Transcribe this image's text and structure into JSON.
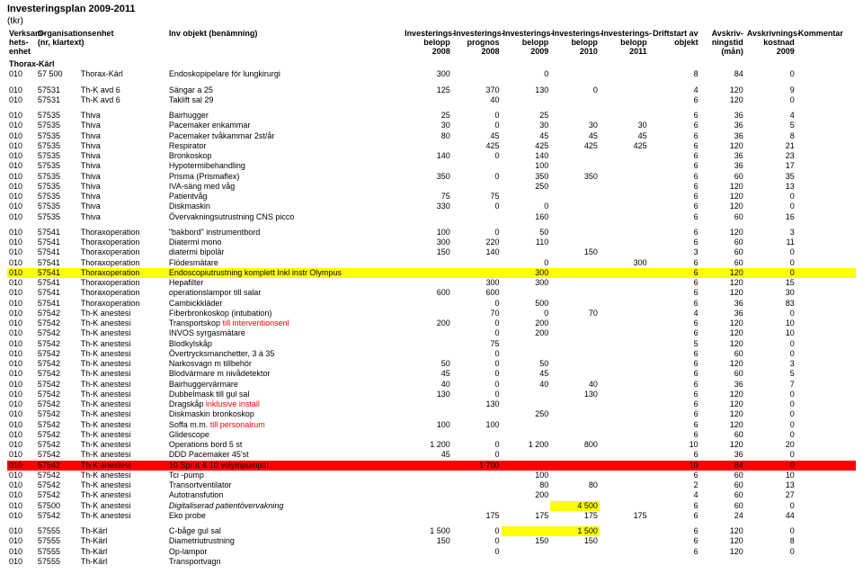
{
  "title": "Investeringsplan 2009-2011",
  "subtitle": "(tkr)",
  "headers": {
    "c0a": "Verksam-",
    "c0b": "hets-",
    "c0c": "enhet",
    "c1a": "Organisationsenhet",
    "c1b": "(nr, klartext)",
    "c2": "Inv objekt (benämning)",
    "c3a": "Investerings-",
    "c3b": "belopp",
    "c3c": "2008",
    "c4a": "Investerings-",
    "c4b": "prognos",
    "c4c": "2008",
    "c5a": "Investerings-",
    "c5b": "belopp",
    "c5c": "2009",
    "c6a": "Investerings-",
    "c6b": "belopp",
    "c6c": "2010",
    "c7a": "Investerings-",
    "c7b": "belopp",
    "c7c": "2011",
    "c8a": "Driftstart av",
    "c8b": "objekt",
    "c9a": "Avskriv-",
    "c9b": "ningstid",
    "c9c": "(mån)",
    "c10a": "Avskrivnings-",
    "c10b": "kostnad 2009",
    "c11": "Kommentar"
  },
  "sectionName": "Thorax-Kärl",
  "colors": {
    "highlightYellow": "#ffff00",
    "highlightRed": "#ff0000",
    "redText": "#ff0000"
  },
  "rows": [
    {
      "ve": "010",
      "nr": "57 500",
      "org": "Thorax-Kärl",
      "obj": "Endoskopipelare för lungkirurgi",
      "v": [
        "300",
        "",
        "0",
        "",
        "",
        "8",
        "84",
        "0"
      ]
    },
    {
      "spacer": true
    },
    {
      "ve": "010",
      "nr": "57531",
      "org": "Th-K avd 6",
      "obj": "Sängar a 25",
      "v": [
        "125",
        "370",
        "130",
        "0",
        "",
        "4",
        "120",
        "9"
      ]
    },
    {
      "ve": "010",
      "nr": "57531",
      "org": "Th-K avd 6",
      "obj": "Taklift sal 29",
      "v": [
        "",
        "40",
        "",
        "",
        "",
        "6",
        "120",
        "0"
      ]
    },
    {
      "spacer": true
    },
    {
      "ve": "010",
      "nr": "57535",
      "org": "Thiva",
      "obj": "Bairhugger",
      "v": [
        "25",
        "0",
        "25",
        "",
        "",
        "6",
        "36",
        "4"
      ]
    },
    {
      "ve": "010",
      "nr": "57535",
      "org": "Thiva",
      "obj": "Pacemaker enkammar",
      "v": [
        "30",
        "0",
        "30",
        "30",
        "30",
        "6",
        "36",
        "5"
      ]
    },
    {
      "ve": "010",
      "nr": "57535",
      "org": "Thiva",
      "obj": "Pacemaker tvåkammar 2st/år",
      "v": [
        "80",
        "45",
        "45",
        "45",
        "45",
        "6",
        "36",
        "8"
      ]
    },
    {
      "ve": "010",
      "nr": "57535",
      "org": "Thiva",
      "obj": "Respirator",
      "v": [
        "",
        "425",
        "425",
        "425",
        "425",
        "6",
        "120",
        "21"
      ]
    },
    {
      "ve": "010",
      "nr": "57535",
      "org": "Thiva",
      "obj": "Bronkoskop",
      "v": [
        "140",
        "0",
        "140",
        "",
        "",
        "6",
        "36",
        "23"
      ]
    },
    {
      "ve": "010",
      "nr": "57535",
      "org": "Thiva",
      "obj": "Hypotermibehandling",
      "v": [
        "",
        "",
        "100",
        "",
        "",
        "6",
        "36",
        "17"
      ]
    },
    {
      "ve": "010",
      "nr": "57535",
      "org": "Thiva",
      "obj": "Prisma (Prismaflex)",
      "v": [
        "350",
        "0",
        "350",
        "350",
        "",
        "6",
        "60",
        "35"
      ]
    },
    {
      "ve": "010",
      "nr": "57535",
      "org": "Thiva",
      "obj": "IVA-säng med våg",
      "v": [
        "",
        "",
        "250",
        "",
        "",
        "6",
        "120",
        "13"
      ]
    },
    {
      "ve": "010",
      "nr": "57535",
      "org": "Thiva",
      "obj": "Patientvåg",
      "v": [
        "75",
        "75",
        "",
        "",
        "",
        "6",
        "120",
        "0"
      ]
    },
    {
      "ve": "010",
      "nr": "57535",
      "org": "Thiva",
      "obj": "Diskmaskin",
      "v": [
        "330",
        "0",
        "0",
        "",
        "",
        "6",
        "120",
        "0"
      ]
    },
    {
      "ve": "010",
      "nr": "57535",
      "org": "Thiva",
      "obj": "Övervakningsutrustning CNS picco",
      "v": [
        "",
        "",
        "160",
        "",
        "",
        "6",
        "60",
        "16"
      ]
    },
    {
      "spacer": true
    },
    {
      "ve": "010",
      "nr": "57541",
      "org": "Thoraxoperation",
      "obj": "\"bakbord\" instrumentbord",
      "v": [
        "100",
        "0",
        "50",
        "",
        "",
        "6",
        "120",
        "3"
      ]
    },
    {
      "ve": "010",
      "nr": "57541",
      "org": "Thoraxoperation",
      "obj": "Diatermi mono",
      "v": [
        "300",
        "220",
        "110",
        "",
        "",
        "6",
        "60",
        "11"
      ]
    },
    {
      "ve": "010",
      "nr": "57541",
      "org": "Thoraxoperation",
      "obj": "diatermi bipolär",
      "v": [
        "150",
        "140",
        "",
        "150",
        "",
        "3",
        "60",
        "0"
      ]
    },
    {
      "ve": "010",
      "nr": "57541",
      "org": "Thoraxoperation",
      "obj": "Flödesmätare",
      "v": [
        "",
        "",
        "0",
        "",
        "300",
        "6",
        "60",
        "0"
      ]
    },
    {
      "ve": "010",
      "nr": "57541",
      "org": "Thoraxoperation",
      "obj": "Endoscopiutrustning komplett Inkl instr Olympus",
      "v": [
        "",
        "",
        "300",
        "",
        "",
        "6",
        "120",
        "0"
      ],
      "rowClass": "hl-yellow"
    },
    {
      "ve": "010",
      "nr": "57541",
      "org": "Thoraxoperation",
      "obj": "Hepafilter",
      "v": [
        "",
        "300",
        "300",
        "",
        "",
        "6",
        "120",
        "15"
      ]
    },
    {
      "ve": "010",
      "nr": "57541",
      "org": "Thoraxoperation",
      "obj": "operationslampor till salar",
      "v": [
        "600",
        "600",
        "",
        "",
        "",
        "6",
        "120",
        "30"
      ]
    },
    {
      "ve": "010",
      "nr": "57541",
      "org": "Thoraxoperation",
      "obj": "Cambickkläder",
      "v": [
        "",
        "0",
        "500",
        "",
        "",
        "6",
        "36",
        "83"
      ]
    },
    {
      "ve": "010",
      "nr": "57542",
      "org": "Th-K anestesi",
      "obj": "Fiberbronkoskop (intubation)",
      "v": [
        "",
        "70",
        "0",
        "70",
        "",
        "4",
        "36",
        "0"
      ]
    },
    {
      "ve": "010",
      "nr": "57542",
      "org": "Th-K anestesi",
      "obj": "Transportskop",
      "objSuffix": " till interventionsenl",
      "v": [
        "200",
        "0",
        "200",
        "",
        "",
        "6",
        "120",
        "10"
      ]
    },
    {
      "ve": "010",
      "nr": "57542",
      "org": "Th-K anestesi",
      "obj": "INVOS syrgasmätare",
      "v": [
        "",
        "0",
        "200",
        "",
        "",
        "6",
        "120",
        "10"
      ]
    },
    {
      "ve": "010",
      "nr": "57542",
      "org": "Th-K anestesi",
      "obj": "Blodkylskåp",
      "v": [
        "",
        "75",
        "",
        "",
        "",
        "5",
        "120",
        "0"
      ]
    },
    {
      "ve": "010",
      "nr": "57542",
      "org": "Th-K anestesi",
      "obj": "Övertrycksmanchetter, 3 à 35",
      "v": [
        "",
        "0",
        "",
        "",
        "",
        "6",
        "60",
        "0"
      ]
    },
    {
      "ve": "010",
      "nr": "57542",
      "org": "Th-K anestesi",
      "obj": "Narkosvagn m tillbehör",
      "v": [
        "50",
        "0",
        "50",
        "",
        "",
        "6",
        "120",
        "3"
      ]
    },
    {
      "ve": "010",
      "nr": "57542",
      "org": "Th-K anestesi",
      "obj": "Blodvärmare m nivådetektor",
      "v": [
        "45",
        "0",
        "45",
        "",
        "",
        "6",
        "60",
        "5"
      ]
    },
    {
      "ve": "010",
      "nr": "57542",
      "org": "Th-K anestesi",
      "obj": "Bairhuggervärmare",
      "v": [
        "40",
        "0",
        "40",
        "40",
        "",
        "6",
        "36",
        "7"
      ]
    },
    {
      "ve": "010",
      "nr": "57542",
      "org": "Th-K anestesi",
      "obj": "Dubbelmask till gul sal",
      "v": [
        "130",
        "0",
        "",
        "130",
        "",
        "6",
        "120",
        "0"
      ]
    },
    {
      "ve": "010",
      "nr": "57542",
      "org": "Th-K anestesi",
      "obj": "Dragskåp",
      "objSuffix": " inklusive install",
      "v": [
        "",
        "130",
        "",
        "",
        "",
        "6",
        "120",
        "0"
      ]
    },
    {
      "ve": "010",
      "nr": "57542",
      "org": "Th-K anestesi",
      "obj": "Diskmaskin bronkoskop",
      "v": [
        "",
        "",
        "250",
        "",
        "",
        "6",
        "120",
        "0"
      ]
    },
    {
      "ve": "010",
      "nr": "57542",
      "org": "Th-K anestesi",
      "obj": "Soffa m.m.",
      "objSuffix": " till personalrum",
      "v": [
        "100",
        "100",
        "",
        "",
        "",
        "6",
        "120",
        "0"
      ]
    },
    {
      "ve": "010",
      "nr": "57542",
      "org": "Th-K anestesi",
      "obj": "Glidescope",
      "v": [
        "",
        "",
        "",
        "",
        "",
        "6",
        "60",
        "0"
      ]
    },
    {
      "ve": "010",
      "nr": "57542",
      "org": "Th-K anestesi",
      "obj": "Operations bord 5 st",
      "v": [
        "1 200",
        "0",
        "1 200",
        "800",
        "",
        "10",
        "120",
        "20"
      ]
    },
    {
      "ve": "010",
      "nr": "57542",
      "org": "Th-K anestesi",
      "obj": "DDD Pacemaker 45'st",
      "v": [
        "45",
        "0",
        "",
        "",
        "",
        "6",
        "36",
        "0"
      ]
    },
    {
      "ve": "010",
      "nr": "57542",
      "org": "Th-K anestesi",
      "obj": "10 Sprut & 10 volympumpar",
      "v": [
        "",
        "1 700",
        "",
        "",
        "",
        "10",
        "84",
        "0"
      ],
      "rowClass": "hl-red"
    },
    {
      "ve": "010",
      "nr": "57542",
      "org": "Th-K anestesi",
      "obj": "Tci -pump",
      "v": [
        "",
        "",
        "100",
        "",
        "",
        "6",
        "60",
        "10"
      ]
    },
    {
      "ve": "010",
      "nr": "57542",
      "org": "Th-K anestesi",
      "obj": "Transortventilator",
      "v": [
        "",
        "",
        "80",
        "80",
        "",
        "2",
        "60",
        "13"
      ]
    },
    {
      "ve": "010",
      "nr": "57542",
      "org": "Th-K anestesi",
      "obj": "Autotransfution",
      "v": [
        "",
        "",
        "200",
        "",
        "",
        "4",
        "60",
        "27"
      ]
    },
    {
      "ve": "010",
      "nr": "57500",
      "org": "Th-K anestesi",
      "obj": "Digitaliserad patientövervakning",
      "objItalic": true,
      "v": [
        "",
        "",
        "",
        "4 500",
        "",
        "6",
        "60",
        "0"
      ],
      "hl": [
        3
      ]
    },
    {
      "ve": "010",
      "nr": "57542",
      "org": "Th-K anestesi",
      "obj": "Eko probe",
      "v": [
        "",
        "175",
        "175",
        "175",
        "175",
        "6",
        "24",
        "44"
      ]
    },
    {
      "spacer": true
    },
    {
      "ve": "010",
      "nr": "57555",
      "org": "Th-Kärl",
      "obj": "C-båge gul sal",
      "v": [
        "1 500",
        "0",
        "",
        "1 500",
        "",
        "6",
        "120",
        "0"
      ],
      "hl": [
        2,
        3
      ]
    },
    {
      "ve": "010",
      "nr": "57555",
      "org": "Th-Kärl",
      "obj": "Diametriutrustning",
      "v": [
        "150",
        "0",
        "150",
        "150",
        "",
        "6",
        "120",
        "8"
      ]
    },
    {
      "ve": "010",
      "nr": "57555",
      "org": "Th-Kärl",
      "obj": "Op-lampor",
      "v": [
        "",
        "0",
        "",
        "",
        "",
        "6",
        "120",
        "0"
      ]
    },
    {
      "ve": "010",
      "nr": "57555",
      "org": "Th-Kärl",
      "obj": "Transportvagn",
      "v": [
        "",
        "",
        "",
        "",
        "",
        "",
        "",
        ""
      ]
    }
  ]
}
